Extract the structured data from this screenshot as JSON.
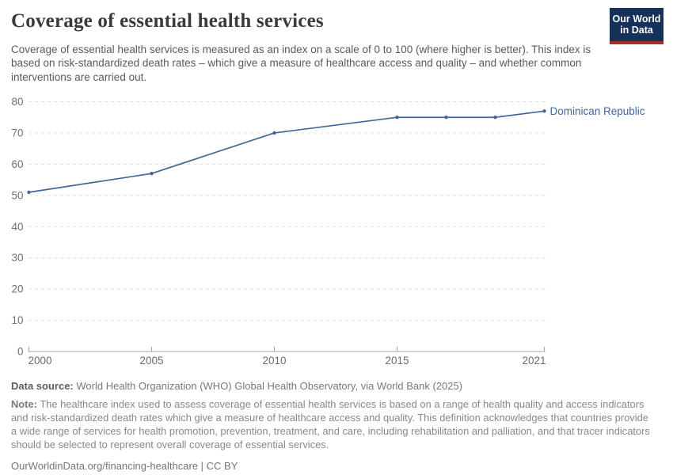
{
  "header": {
    "title": "Coverage of essential health services",
    "subtitle_lines": [
      "Coverage of essential health services is measured as an index on a scale of 0 to 100 (where higher is better).",
      "This index is based on risk-standardized death rates – which give a measure of healthcare access and quality –",
      "and whether common interventions are carried out."
    ],
    "logo": {
      "line1": "Our World",
      "line2": "in Data"
    }
  },
  "chart_data": {
    "type": "line",
    "title": "Coverage of essential health services",
    "xlabel": "",
    "ylabel": "",
    "xlim": [
      2000,
      2021
    ],
    "ylim": [
      0,
      80
    ],
    "xticks": [
      2000,
      2005,
      2010,
      2015,
      2021
    ],
    "yticks": [
      0,
      10,
      20,
      30,
      40,
      50,
      60,
      70,
      80
    ],
    "grid": "horizontal-dashed",
    "legend_position": "end-of-line-label",
    "series": [
      {
        "name": "Dominican Republic",
        "color": "#3f669c",
        "x": [
          2000,
          2005,
          2010,
          2015,
          2017,
          2019,
          2021
        ],
        "values": [
          51,
          57,
          70,
          75,
          75,
          75,
          77
        ]
      }
    ]
  },
  "footer": {
    "data_source_label": "Data source:",
    "data_source": "World Health Organization (WHO) Global Health Observatory, via World Bank (2025)",
    "note_label": "Note:",
    "note_lines": [
      "The healthcare index used to assess coverage of essential health services is based on a range of health quality and access indicators",
      "and risk-standardized death rates which give a measure of healthcare access and quality. This definition acknowledges that countries provide",
      "a wide range of services for health promotion, prevention, treatment, and care, including rehabilitation and palliation, and that tracer indicators",
      "should be selected to represent overall coverage of essential services."
    ],
    "link": "OurWorldinData.org/financing-healthcare | CC BY"
  },
  "colors": {
    "line": "#3f669c",
    "grid": "#dedede",
    "axis": "#a3a3a3",
    "tick_label": "#6f6f6f",
    "logo_bg": "#16325a",
    "logo_bar": "#a92d25"
  }
}
